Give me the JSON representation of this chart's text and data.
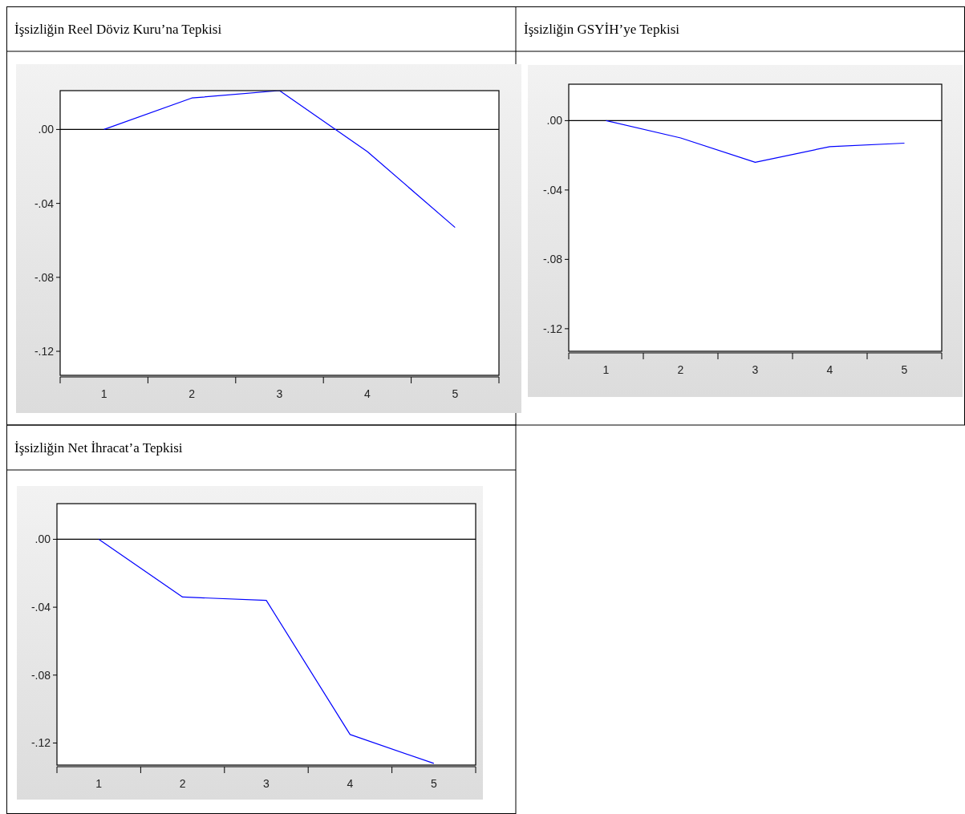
{
  "chart_data": [
    {
      "type": "line",
      "title": "İşsizliğin Reel Döviz Kuru’na Tepkisi",
      "categories": [
        "1",
        "2",
        "3",
        "4",
        "5"
      ],
      "series": [
        {
          "color": "#0000ff",
          "values": [
            0,
            0.017,
            0.021,
            -0.012,
            -0.053
          ]
        }
      ],
      "ylim": [
        -0.133,
        0.021
      ],
      "yticks": [
        {
          "value": 0,
          "label": ".00"
        },
        {
          "value": -0.04,
          "label": "-.04"
        },
        {
          "value": -0.08,
          "label": "-.08"
        },
        {
          "value": -0.12,
          "label": "-.12"
        }
      ],
      "ref_lines": [
        {
          "axis": "y",
          "value": 0,
          "color": "#000000"
        }
      ]
    },
    {
      "type": "line",
      "title": "İşsizliğin GSYİH’ye Tepkisi",
      "categories": [
        "1",
        "2",
        "3",
        "4",
        "5"
      ],
      "series": [
        {
          "color": "#0000ff",
          "values": [
            0,
            -0.01,
            -0.024,
            -0.015,
            -0.013
          ]
        }
      ],
      "ylim": [
        -0.133,
        0.021
      ],
      "yticks": [
        {
          "value": 0,
          "label": ".00"
        },
        {
          "value": -0.04,
          "label": "-.04"
        },
        {
          "value": -0.08,
          "label": "-.08"
        },
        {
          "value": -0.12,
          "label": "-.12"
        }
      ],
      "ref_lines": [
        {
          "axis": "y",
          "value": 0,
          "color": "#000000"
        }
      ]
    },
    {
      "type": "line",
      "title": "İşsizliğin Net İhracat’a Tepkisi",
      "categories": [
        "1",
        "2",
        "3",
        "4",
        "5"
      ],
      "series": [
        {
          "color": "#0000ff",
          "values": [
            0,
            -0.034,
            -0.036,
            -0.115,
            -0.132
          ]
        }
      ],
      "ylim": [
        -0.133,
        0.021
      ],
      "yticks": [
        {
          "value": 0,
          "label": ".00"
        },
        {
          "value": -0.04,
          "label": "-.04"
        },
        {
          "value": -0.08,
          "label": "-.08"
        },
        {
          "value": -0.12,
          "label": "-.12"
        }
      ],
      "ref_lines": [
        {
          "axis": "y",
          "value": 0,
          "color": "#000000"
        }
      ]
    }
  ]
}
